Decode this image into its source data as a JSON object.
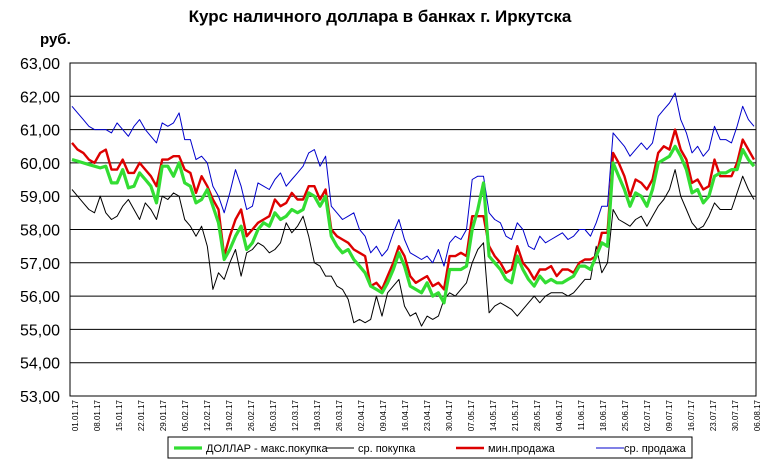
{
  "chart_data": {
    "type": "line",
    "title": "Курс наличного доллара  в банках г. Иркутска",
    "ylabel": "руб.",
    "xlabel": "",
    "ylim": [
      53,
      63
    ],
    "yticks": [
      "53,00",
      "54,00",
      "55,00",
      "56,00",
      "57,00",
      "58,00",
      "59,00",
      "60,00",
      "61,00",
      "62,00",
      "63,00"
    ],
    "grid": true,
    "legend_position": "bottom",
    "x_labels": [
      "01.01.17",
      "08.01.17",
      "15.01.17",
      "22.01.17",
      "29.01.17",
      "05.02.17",
      "12.02.17",
      "19.02.17",
      "26.02.17",
      "05.03.17",
      "12.03.17",
      "19.03.17",
      "26.03.17",
      "02.04.17",
      "09.04.17",
      "16.04.17",
      "23.04.17",
      "30.04.17",
      "07.05.17",
      "14.05.17",
      "21.05.17",
      "28.05.17",
      "04.06.17",
      "11.06.17",
      "18.06.17",
      "25.06.17",
      "02.07.17",
      "09.07.17",
      "16.07.17",
      "23.07.17",
      "30.07.17",
      "06.08.17"
    ],
    "series": [
      {
        "name": "ДОЛЛАР - макс.покупка",
        "color": "#33dd33",
        "width": 3.2,
        "values": [
          60.1,
          60.05,
          60.0,
          59.95,
          59.9,
          59.85,
          59.9,
          59.4,
          59.4,
          59.8,
          59.25,
          59.3,
          59.7,
          59.5,
          59.3,
          58.8,
          59.9,
          59.9,
          59.6,
          60.0,
          59.4,
          59.3,
          58.8,
          58.9,
          59.2,
          58.7,
          58.2,
          57.1,
          57.4,
          57.8,
          58.1,
          57.4,
          57.6,
          58.0,
          58.2,
          58.1,
          58.5,
          58.3,
          58.4,
          58.6,
          58.5,
          58.6,
          59.1,
          59.0,
          58.7,
          59.0,
          57.8,
          57.5,
          57.3,
          57.4,
          57.1,
          56.9,
          56.7,
          56.3,
          56.2,
          56.1,
          56.4,
          56.8,
          57.3,
          56.9,
          56.3,
          56.2,
          56.1,
          56.4,
          56.0,
          56.1,
          55.8,
          56.8,
          56.8,
          56.8,
          56.9,
          58.0,
          58.6,
          59.4,
          57.2,
          57.0,
          56.8,
          56.5,
          56.4,
          57.2,
          56.8,
          56.5,
          56.3,
          56.6,
          56.4,
          56.5,
          56.4,
          56.4,
          56.5,
          56.6,
          56.9,
          56.9,
          56.8,
          57.2,
          57.6,
          57.5,
          60.0,
          59.6,
          59.2,
          58.7,
          59.1,
          59.0,
          58.7,
          59.2,
          60.0,
          60.1,
          60.2,
          60.5,
          60.2,
          59.8,
          59.1,
          59.2,
          58.8,
          59.0,
          59.6,
          59.7,
          59.7,
          59.8,
          59.8,
          60.4,
          60.1,
          59.9
        ]
      },
      {
        "name": "ср. покупка",
        "color": "#000000",
        "width": 1,
        "values": [
          59.2,
          59.0,
          58.8,
          58.6,
          58.5,
          59.0,
          58.5,
          58.3,
          58.4,
          58.7,
          58.9,
          58.6,
          58.3,
          58.8,
          58.6,
          58.3,
          59.0,
          58.9,
          59.1,
          59.0,
          58.3,
          58.1,
          57.8,
          58.1,
          57.5,
          56.2,
          56.7,
          56.5,
          57.0,
          57.4,
          56.6,
          57.3,
          57.4,
          57.6,
          57.5,
          57.3,
          57.4,
          57.6,
          58.2,
          57.9,
          58.1,
          58.4,
          57.8,
          57.0,
          56.9,
          56.6,
          56.6,
          56.3,
          56.2,
          55.9,
          55.2,
          55.3,
          55.2,
          55.3,
          56.0,
          55.4,
          56.1,
          56.3,
          56.5,
          55.7,
          55.4,
          55.5,
          55.1,
          55.4,
          55.3,
          55.4,
          55.9,
          56.1,
          56.0,
          56.2,
          56.4,
          57.0,
          57.4,
          57.6,
          55.5,
          55.7,
          55.8,
          55.7,
          55.6,
          55.4,
          55.6,
          55.8,
          56.0,
          55.8,
          56.0,
          56.1,
          56.1,
          56.1,
          56.0,
          56.1,
          56.3,
          56.5,
          56.5,
          57.5,
          56.7,
          57.0,
          58.6,
          58.3,
          58.2,
          58.1,
          58.3,
          58.4,
          58.1,
          58.4,
          58.7,
          58.9,
          59.2,
          59.8,
          59.0,
          58.6,
          58.2,
          58.0,
          58.1,
          58.4,
          58.8,
          58.6,
          58.6,
          58.6,
          59.1,
          59.6,
          59.2,
          58.9
        ]
      },
      {
        "name": "мин.продажа",
        "color": "#dd0000",
        "width": 2.4,
        "values": [
          60.6,
          60.4,
          60.3,
          60.1,
          60.0,
          60.3,
          60.4,
          59.8,
          59.8,
          60.1,
          59.7,
          59.7,
          60.0,
          59.8,
          59.6,
          59.3,
          60.1,
          60.1,
          60.2,
          60.2,
          59.8,
          59.7,
          59.1,
          59.6,
          59.3,
          58.9,
          58.6,
          57.2,
          57.8,
          58.3,
          58.6,
          57.8,
          58.0,
          58.2,
          58.3,
          58.4,
          58.9,
          58.7,
          58.8,
          59.1,
          58.9,
          58.9,
          59.3,
          59.3,
          58.9,
          59.2,
          58.0,
          57.8,
          57.7,
          57.6,
          57.4,
          57.3,
          57.2,
          56.3,
          56.4,
          56.2,
          56.6,
          57.0,
          57.5,
          57.2,
          56.6,
          56.4,
          56.5,
          56.6,
          56.3,
          56.4,
          56.2,
          57.2,
          57.2,
          57.3,
          57.2,
          58.4,
          58.4,
          58.4,
          57.5,
          57.2,
          57.0,
          56.7,
          56.8,
          57.5,
          57.0,
          56.8,
          56.5,
          56.8,
          56.8,
          56.9,
          56.6,
          56.8,
          56.8,
          56.7,
          57.0,
          57.1,
          57.1,
          57.2,
          57.9,
          57.9,
          60.3,
          60.0,
          59.6,
          59.0,
          59.5,
          59.4,
          59.2,
          59.5,
          60.3,
          60.5,
          60.4,
          61.0,
          60.4,
          60.1,
          59.4,
          59.5,
          59.2,
          59.3,
          60.1,
          59.6,
          59.6,
          59.6,
          60.0,
          60.7,
          60.4,
          60.1
        ]
      },
      {
        "name": "ср. продажа",
        "color": "#0000cc",
        "width": 1,
        "values": [
          61.7,
          61.5,
          61.3,
          61.1,
          61.0,
          61.0,
          61.0,
          60.9,
          61.2,
          61.0,
          60.8,
          61.1,
          61.3,
          61.0,
          60.8,
          60.6,
          61.2,
          61.1,
          61.2,
          61.5,
          60.7,
          60.7,
          60.1,
          60.2,
          60.0,
          59.3,
          59.0,
          58.5,
          59.1,
          59.8,
          59.3,
          58.6,
          58.7,
          59.4,
          59.3,
          59.2,
          59.5,
          59.7,
          59.3,
          59.5,
          59.7,
          59.9,
          60.3,
          60.4,
          59.9,
          60.2,
          58.7,
          58.5,
          58.3,
          58.4,
          58.5,
          58.0,
          57.8,
          57.3,
          57.5,
          57.2,
          57.4,
          57.9,
          58.3,
          57.7,
          57.3,
          57.2,
          57.1,
          57.2,
          57.0,
          57.4,
          56.9,
          57.6,
          57.8,
          57.7,
          58.0,
          59.5,
          59.6,
          59.6,
          58.5,
          58.3,
          58.2,
          57.8,
          57.7,
          58.2,
          58.0,
          57.5,
          57.4,
          57.8,
          57.6,
          57.7,
          57.8,
          57.9,
          57.7,
          57.8,
          58.0,
          58.0,
          57.8,
          58.2,
          58.7,
          58.7,
          60.9,
          60.7,
          60.5,
          60.2,
          60.4,
          60.6,
          60.4,
          60.6,
          61.4,
          61.6,
          61.8,
          62.1,
          61.3,
          60.9,
          60.3,
          60.5,
          60.2,
          60.4,
          61.1,
          60.7,
          60.7,
          60.6,
          61.1,
          61.7,
          61.3,
          61.1
        ]
      }
    ]
  }
}
